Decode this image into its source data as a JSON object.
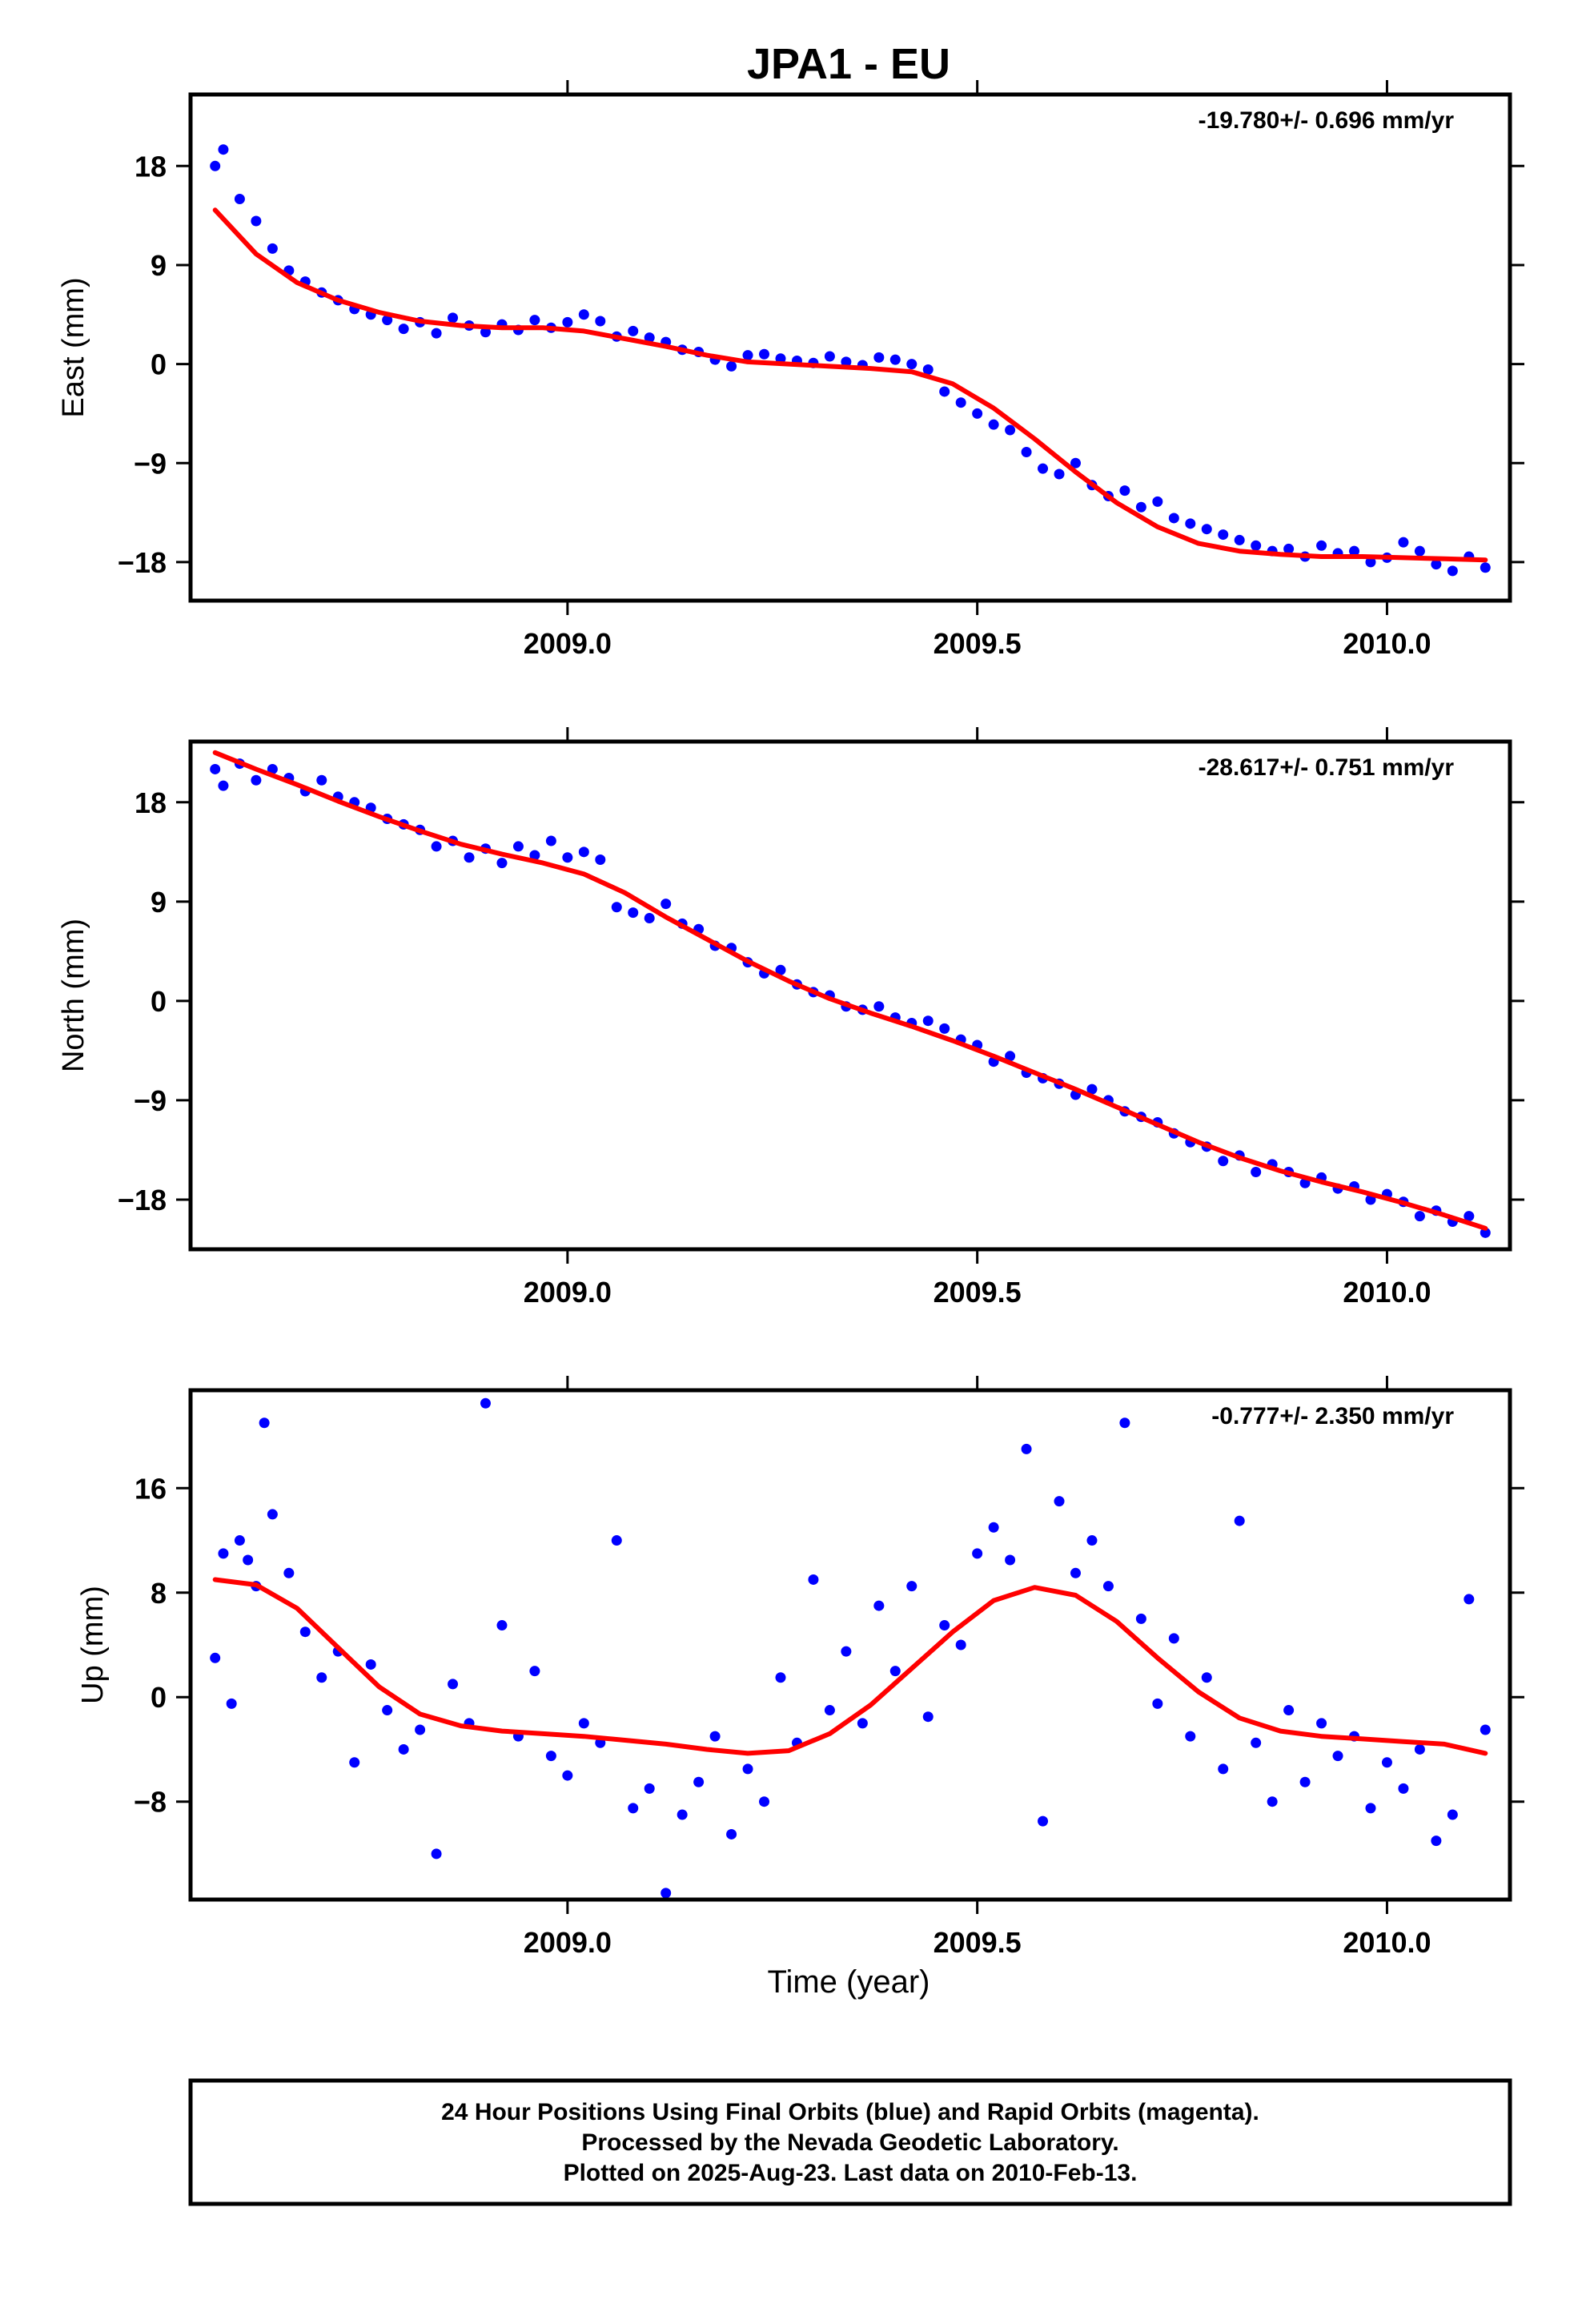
{
  "title": "JPA1 - EU",
  "x_axis_label": "Time (year)",
  "footer": [
    "24 Hour Positions Using Final Orbits (blue) and Rapid Orbits (magenta).",
    "Processed by the Nevada Geodetic Laboratory.",
    "Plotted on 2025-Aug-23. Last data on 2010-Feb-13."
  ],
  "colors": {
    "points": "#0000ff",
    "fit": "#ff0000",
    "frame": "#000000"
  },
  "chart_data": [
    {
      "type": "scatter",
      "ylabel": "East (mm)",
      "rate_label": "-19.780+/- 0.696 mm/yr",
      "xlim": [
        2008.54,
        2010.15
      ],
      "ylim": [
        -21.5,
        24.5
      ],
      "x_ticks": [
        2009.0,
        2009.5,
        2010.0
      ],
      "x_tick_labels": [
        "2009.0",
        "2009.5",
        "2010.0"
      ],
      "y_ticks": [
        -18,
        -9,
        0,
        9,
        18
      ],
      "y_tick_labels": [
        "−18",
        "−9",
        "0",
        "9",
        "18"
      ],
      "series": [
        {
          "role": "daily positions",
          "style": "points",
          "color": "blue",
          "x": [
            2008.57,
            2008.58,
            2008.6,
            2008.62,
            2008.64,
            2008.66,
            2008.68,
            2008.7,
            2008.72,
            2008.74,
            2008.76,
            2008.78,
            2008.8,
            2008.82,
            2008.84,
            2008.86,
            2008.88,
            2008.9,
            2008.92,
            2008.94,
            2008.96,
            2008.98,
            2009.0,
            2009.02,
            2009.04,
            2009.06,
            2009.08,
            2009.1,
            2009.12,
            2009.14,
            2009.16,
            2009.18,
            2009.2,
            2009.22,
            2009.24,
            2009.26,
            2009.28,
            2009.3,
            2009.32,
            2009.34,
            2009.36,
            2009.38,
            2009.4,
            2009.42,
            2009.44,
            2009.46,
            2009.48,
            2009.5,
            2009.52,
            2009.54,
            2009.56,
            2009.58,
            2009.6,
            2009.62,
            2009.64,
            2009.66,
            2009.68,
            2009.7,
            2009.72,
            2009.74,
            2009.76,
            2009.78,
            2009.8,
            2009.82,
            2009.84,
            2009.86,
            2009.88,
            2009.9,
            2009.92,
            2009.94,
            2009.96,
            2009.98,
            2010.0,
            2010.02,
            2010.04,
            2010.06,
            2010.08,
            2010.1,
            2010.12
          ],
          "y": [
            18.0,
            19.5,
            15.0,
            13.0,
            10.5,
            8.5,
            7.5,
            6.5,
            5.8,
            5.0,
            4.5,
            4.0,
            3.2,
            3.8,
            2.8,
            4.2,
            3.5,
            2.9,
            3.6,
            3.1,
            4.0,
            3.3,
            3.8,
            4.5,
            3.9,
            2.5,
            3.0,
            2.4,
            2.0,
            1.3,
            1.1,
            0.4,
            -0.2,
            0.8,
            0.9,
            0.5,
            0.3,
            0.1,
            0.7,
            0.2,
            -0.1,
            0.6,
            0.4,
            0.0,
            -0.5,
            -2.5,
            -3.5,
            -4.5,
            -5.5,
            -6.0,
            -8.0,
            -9.5,
            -10.0,
            -9.0,
            -11.0,
            -12.0,
            -11.5,
            -13.0,
            -12.5,
            -14.0,
            -14.5,
            -15.0,
            -15.5,
            -16.0,
            -16.5,
            -17.0,
            -16.8,
            -17.5,
            -16.5,
            -17.2,
            -17.0,
            -18.0,
            -17.6,
            -16.2,
            -17.0,
            -18.2,
            -18.8,
            -17.5,
            -18.5
          ]
        },
        {
          "role": "model fit",
          "style": "line",
          "color": "red",
          "x": [
            2008.57,
            2008.62,
            2008.67,
            2008.72,
            2008.77,
            2008.82,
            2008.87,
            2008.92,
            2008.97,
            2009.02,
            2009.07,
            2009.12,
            2009.17,
            2009.22,
            2009.27,
            2009.32,
            2009.37,
            2009.42,
            2009.47,
            2009.52,
            2009.57,
            2009.62,
            2009.67,
            2009.72,
            2009.77,
            2009.82,
            2009.87,
            2009.92,
            2009.97,
            2010.02,
            2010.07,
            2010.12
          ],
          "y": [
            14.0,
            10.0,
            7.4,
            5.8,
            4.7,
            3.9,
            3.5,
            3.3,
            3.3,
            3.0,
            2.3,
            1.6,
            0.8,
            0.2,
            0.0,
            -0.2,
            -0.4,
            -0.7,
            -1.8,
            -4.0,
            -6.8,
            -9.8,
            -12.6,
            -14.8,
            -16.3,
            -17.0,
            -17.3,
            -17.5,
            -17.5,
            -17.6,
            -17.7,
            -17.8
          ]
        }
      ]
    },
    {
      "type": "scatter",
      "ylabel": "North (mm)",
      "rate_label": "-28.617+/- 0.751 mm/yr",
      "xlim": [
        2008.54,
        2010.15
      ],
      "ylim": [
        -22.5,
        23.5
      ],
      "x_ticks": [
        2009.0,
        2009.5,
        2010.0
      ],
      "x_tick_labels": [
        "2009.0",
        "2009.5",
        "2010.0"
      ],
      "y_ticks": [
        -18,
        -9,
        0,
        9,
        18
      ],
      "y_tick_labels": [
        "−18",
        "−9",
        "0",
        "9",
        "18"
      ],
      "series": [
        {
          "role": "daily positions",
          "style": "points",
          "color": "blue",
          "x": [
            2008.57,
            2008.58,
            2008.6,
            2008.62,
            2008.64,
            2008.66,
            2008.68,
            2008.7,
            2008.72,
            2008.74,
            2008.76,
            2008.78,
            2008.8,
            2008.82,
            2008.84,
            2008.86,
            2008.88,
            2008.9,
            2008.92,
            2008.94,
            2008.96,
            2008.98,
            2009.0,
            2009.02,
            2009.04,
            2009.06,
            2009.08,
            2009.1,
            2009.12,
            2009.14,
            2009.16,
            2009.18,
            2009.2,
            2009.22,
            2009.24,
            2009.26,
            2009.28,
            2009.3,
            2009.32,
            2009.34,
            2009.36,
            2009.38,
            2009.4,
            2009.42,
            2009.44,
            2009.46,
            2009.48,
            2009.5,
            2009.52,
            2009.54,
            2009.56,
            2009.58,
            2009.6,
            2009.62,
            2009.64,
            2009.66,
            2009.68,
            2009.7,
            2009.72,
            2009.74,
            2009.76,
            2009.78,
            2009.8,
            2009.82,
            2009.84,
            2009.86,
            2009.88,
            2009.9,
            2009.92,
            2009.94,
            2009.96,
            2009.98,
            2010.0,
            2010.02,
            2010.04,
            2010.06,
            2010.08,
            2010.1,
            2010.12
          ],
          "y": [
            21.0,
            19.5,
            21.5,
            20.0,
            21.0,
            20.2,
            19.0,
            20.0,
            18.5,
            18.0,
            17.5,
            16.5,
            16.0,
            15.5,
            14.0,
            14.5,
            13.0,
            13.8,
            12.5,
            14.0,
            13.2,
            14.5,
            13.0,
            13.5,
            12.8,
            8.5,
            8.0,
            7.5,
            8.8,
            7.0,
            6.5,
            5.0,
            4.8,
            3.5,
            2.5,
            2.8,
            1.5,
            0.8,
            0.5,
            -0.5,
            -0.8,
            -0.5,
            -1.5,
            -2.0,
            -1.8,
            -2.5,
            -3.5,
            -4.0,
            -5.5,
            -5.0,
            -6.5,
            -7.0,
            -7.5,
            -8.5,
            -8.0,
            -9.0,
            -10.0,
            -10.5,
            -11.0,
            -12.0,
            -12.8,
            -13.2,
            -14.5,
            -14.0,
            -15.5,
            -14.8,
            -15.5,
            -16.5,
            -16.0,
            -17.0,
            -16.8,
            -18.0,
            -17.5,
            -18.2,
            -19.5,
            -19.0,
            -20.0,
            -19.5,
            -21.0
          ]
        },
        {
          "role": "model fit",
          "style": "line",
          "color": "red",
          "x": [
            2008.57,
            2008.62,
            2008.67,
            2008.72,
            2008.77,
            2008.82,
            2008.87,
            2008.92,
            2008.97,
            2009.02,
            2009.07,
            2009.12,
            2009.17,
            2009.22,
            2009.27,
            2009.32,
            2009.37,
            2009.42,
            2009.47,
            2009.52,
            2009.57,
            2009.62,
            2009.67,
            2009.72,
            2009.77,
            2009.82,
            2009.87,
            2009.92,
            2009.97,
            2010.02,
            2010.07,
            2010.12
          ],
          "y": [
            22.5,
            21.0,
            19.6,
            18.1,
            16.7,
            15.4,
            14.2,
            13.3,
            12.5,
            11.5,
            9.8,
            7.6,
            5.6,
            3.6,
            1.8,
            0.2,
            -1.1,
            -2.3,
            -3.6,
            -5.0,
            -6.5,
            -8.0,
            -9.6,
            -11.2,
            -12.8,
            -14.2,
            -15.4,
            -16.4,
            -17.3,
            -18.3,
            -19.4,
            -20.6
          ]
        }
      ]
    },
    {
      "type": "scatter",
      "ylabel": "Up (mm)",
      "rate_label": "-0.777+/- 2.350 mm/yr",
      "xlim": [
        2008.54,
        2010.15
      ],
      "ylim": [
        -15.5,
        23.5
      ],
      "x_ticks": [
        2009.0,
        2009.5,
        2010.0
      ],
      "x_tick_labels": [
        "2009.0",
        "2009.5",
        "2010.0"
      ],
      "y_ticks": [
        -8,
        0,
        8,
        16
      ],
      "y_tick_labels": [
        "−8",
        "0",
        "8",
        "16"
      ],
      "series": [
        {
          "role": "daily positions",
          "style": "points",
          "color": "blue",
          "x": [
            2008.57,
            2008.58,
            2008.59,
            2008.6,
            2008.61,
            2008.62,
            2008.63,
            2008.64,
            2008.66,
            2008.68,
            2008.7,
            2008.72,
            2008.74,
            2008.76,
            2008.78,
            2008.8,
            2008.82,
            2008.84,
            2008.86,
            2008.88,
            2008.9,
            2008.92,
            2008.94,
            2008.96,
            2008.98,
            2009.0,
            2009.02,
            2009.04,
            2009.06,
            2009.08,
            2009.1,
            2009.12,
            2009.14,
            2009.16,
            2009.18,
            2009.2,
            2009.22,
            2009.24,
            2009.26,
            2009.28,
            2009.3,
            2009.32,
            2009.34,
            2009.36,
            2009.38,
            2009.4,
            2009.42,
            2009.44,
            2009.46,
            2009.48,
            2009.5,
            2009.52,
            2009.54,
            2009.56,
            2009.58,
            2009.6,
            2009.62,
            2009.64,
            2009.66,
            2009.68,
            2009.7,
            2009.72,
            2009.74,
            2009.76,
            2009.78,
            2009.8,
            2009.82,
            2009.84,
            2009.86,
            2009.88,
            2009.9,
            2009.92,
            2009.94,
            2009.96,
            2009.98,
            2010.0,
            2010.02,
            2010.04,
            2010.06,
            2010.08,
            2010.1,
            2010.12
          ],
          "y": [
            3.0,
            11.0,
            -0.5,
            12.0,
            10.5,
            8.5,
            21.0,
            14.0,
            9.5,
            5.0,
            1.5,
            3.5,
            -5.0,
            2.5,
            -1.0,
            -4.0,
            -2.5,
            -12.0,
            1.0,
            -2.0,
            22.5,
            5.5,
            -3.0,
            2.0,
            -4.5,
            -6.0,
            -2.0,
            -3.5,
            12.0,
            -8.5,
            -7.0,
            -15.0,
            -9.0,
            -6.5,
            -3.0,
            -10.5,
            -5.5,
            -8.0,
            1.5,
            -3.5,
            9.0,
            -1.0,
            3.5,
            -2.0,
            7.0,
            2.0,
            8.5,
            -1.5,
            5.5,
            4.0,
            11.0,
            13.0,
            10.5,
            19.0,
            -9.5,
            15.0,
            9.5,
            12.0,
            8.5,
            21.0,
            6.0,
            -0.5,
            4.5,
            -3.0,
            1.5,
            -5.5,
            13.5,
            -3.5,
            -8.0,
            -1.0,
            -6.5,
            -2.0,
            -4.5,
            -3.0,
            -8.5,
            -5.0,
            -7.0,
            -4.0,
            -11.0,
            -9.0,
            7.5,
            -2.5
          ]
        },
        {
          "role": "model fit",
          "style": "line",
          "color": "red",
          "x": [
            2008.57,
            2008.62,
            2008.67,
            2008.72,
            2008.77,
            2008.82,
            2008.87,
            2008.92,
            2008.97,
            2009.02,
            2009.07,
            2009.12,
            2009.17,
            2009.22,
            2009.27,
            2009.32,
            2009.37,
            2009.42,
            2009.47,
            2009.52,
            2009.57,
            2009.62,
            2009.67,
            2009.72,
            2009.77,
            2009.82,
            2009.87,
            2009.92,
            2009.97,
            2010.02,
            2010.07,
            2010.12
          ],
          "y": [
            9.0,
            8.6,
            6.8,
            3.8,
            0.8,
            -1.3,
            -2.2,
            -2.6,
            -2.8,
            -3.0,
            -3.3,
            -3.6,
            -4.0,
            -4.3,
            -4.1,
            -2.8,
            -0.6,
            2.2,
            5.0,
            7.4,
            8.4,
            7.8,
            5.8,
            3.0,
            0.4,
            -1.6,
            -2.6,
            -3.0,
            -3.2,
            -3.4,
            -3.6,
            -4.3
          ]
        }
      ]
    }
  ]
}
